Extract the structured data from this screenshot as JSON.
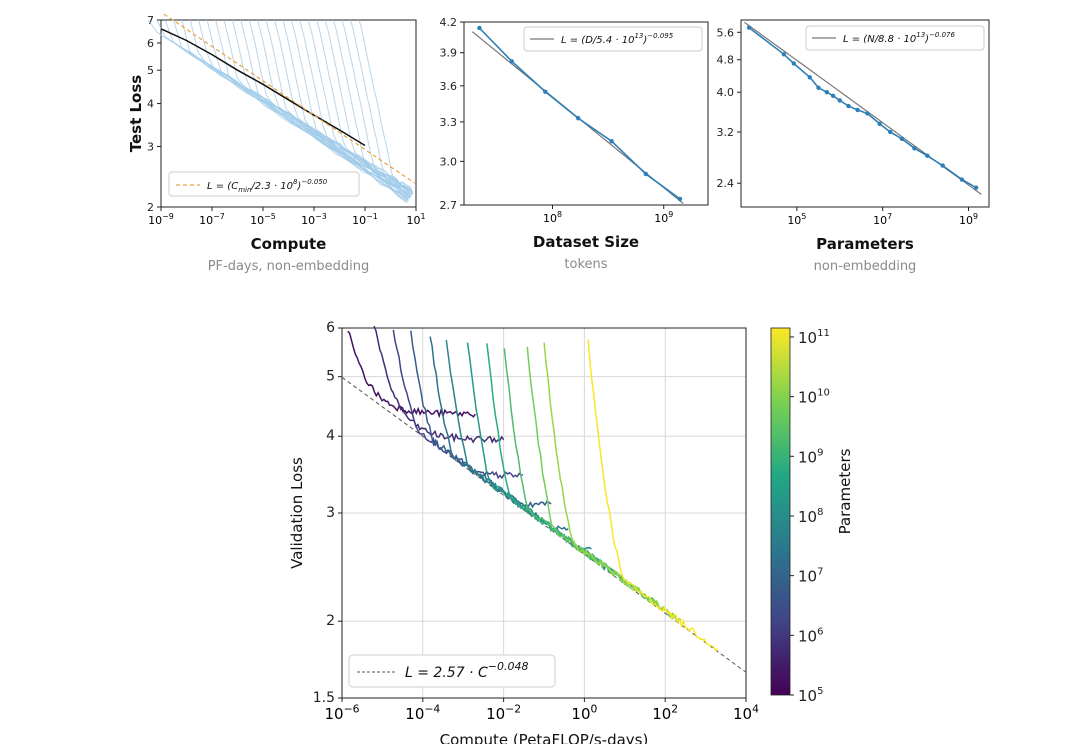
{
  "chart_data": [
    {
      "id": "compute",
      "type": "line",
      "scale": "log-log",
      "xlabel": "Compute",
      "xlabel_sub": "PF-days, non-embedding",
      "ylabel": "Test Loss",
      "xlim": [
        1e-09,
        10
      ],
      "ylim": [
        2,
        7
      ],
      "x_ticks": [
        1e-09,
        1e-07,
        1e-05,
        0.001,
        0.1,
        10
      ],
      "x_tick_labels": [
        {
          "base": "10",
          "exp": "−9"
        },
        {
          "base": "10",
          "exp": "−7"
        },
        {
          "base": "10",
          "exp": "−5"
        },
        {
          "base": "10",
          "exp": "−3"
        },
        {
          "base": "10",
          "exp": "−1"
        },
        {
          "base": "10",
          "exp": "1"
        }
      ],
      "y_ticks": [
        2,
        3,
        4,
        5,
        6,
        7
      ],
      "y_tick_labels": [
        "2",
        "3",
        "4",
        "5",
        "6",
        "7"
      ],
      "legend": {
        "text": "L = (C_min/2.3·10^8)^−0.050",
        "prefix": "L = (C",
        "sub": "min",
        "mid": "/2.3 · 10",
        "sup1": "8",
        "end": ")",
        "sup2": "−0.050",
        "location": "bottom-left"
      },
      "fit": {
        "coef": 230000000.0,
        "alpha": -0.05,
        "color": "#e8a33d",
        "style": "dashed"
      },
      "frontier": {
        "color": "#111111",
        "x": [
          1e-09,
          1e-08,
          1e-07,
          1e-06,
          1e-05,
          0.0001,
          0.001,
          0.01,
          0.1
        ],
        "y": [
          6.6,
          6.1,
          5.55,
          5.0,
          4.55,
          4.1,
          3.7,
          3.35,
          3.02
        ]
      },
      "curve_color": "#9ecae8",
      "curve_count": 26
    },
    {
      "id": "dataset",
      "type": "line",
      "scale": "log-log",
      "xlabel": "Dataset Size",
      "xlabel_sub": "tokens",
      "xlim": [
        16000000.0,
        2500000000.0
      ],
      "ylim": [
        2.7,
        4.2
      ],
      "x_ticks": [
        100000000.0,
        1000000000.0
      ],
      "x_tick_labels": [
        {
          "base": "10",
          "exp": "8"
        },
        {
          "base": "10",
          "exp": "9"
        }
      ],
      "y_ticks": [
        2.7,
        3.0,
        3.3,
        3.6,
        3.9,
        4.2
      ],
      "y_tick_labels": [
        "2.7",
        "3.0",
        "3.3",
        "3.6",
        "3.9",
        "4.2"
      ],
      "legend": {
        "text": "L = (D/5.4·10^13)^−0.095",
        "prefix": "L = (D/5.4 · 10",
        "sup1": "13",
        "end": ")",
        "sup2": "−0.095",
        "location": "top-right"
      },
      "fit": {
        "coef": 54000000000000.0,
        "alpha": -0.095,
        "color": "#777777",
        "style": "solid"
      },
      "series": [
        {
          "name": "observed",
          "color": "#2e7fb8",
          "x": [
            22000000.0,
            43000000.0,
            86000000.0,
            170000000.0,
            340000000.0,
            690000000.0,
            1400000000.0
          ],
          "y": [
            4.14,
            3.82,
            3.55,
            3.33,
            3.15,
            2.91,
            2.74
          ]
        }
      ]
    },
    {
      "id": "parameters",
      "type": "line",
      "scale": "log-log",
      "xlabel": "Parameters",
      "xlabel_sub": "non-embedding",
      "xlim": [
        5000.0,
        3000000000.0
      ],
      "ylim": [
        2.1,
        6.0
      ],
      "x_ticks": [
        100000.0,
        10000000.0,
        1000000000.0
      ],
      "x_tick_labels": [
        {
          "base": "10",
          "exp": "5"
        },
        {
          "base": "10",
          "exp": "7"
        },
        {
          "base": "10",
          "exp": "9"
        }
      ],
      "y_ticks": [
        2.4,
        3.2,
        4.0,
        4.8,
        5.6
      ],
      "y_tick_labels": [
        "2.4",
        "3.2",
        "4.0",
        "4.8",
        "5.6"
      ],
      "legend": {
        "text": "L = (N/8.8·10^13)^−0.076",
        "prefix": "L = (N/8.8 · 10",
        "sup1": "13",
        "end": ")",
        "sup2": "−0.076",
        "location": "top-right"
      },
      "fit": {
        "coef": 88000000000000.0,
        "alpha": -0.076,
        "color": "#777777",
        "style": "solid"
      },
      "series": [
        {
          "name": "observed",
          "color": "#2e7fb8",
          "x": [
            7700.0,
            50000.0,
            85000.0,
            200000.0,
            320000.0,
            500000.0,
            700000.0,
            1000000.0,
            1600000.0,
            2600000.0,
            4400000.0,
            8500000.0,
            15000000.0,
            28000000.0,
            55000000.0,
            110000000.0,
            250000000.0,
            700000000.0,
            1500000000.0
          ],
          "y": [
            5.75,
            4.95,
            4.7,
            4.35,
            4.1,
            4.0,
            3.92,
            3.82,
            3.7,
            3.62,
            3.55,
            3.35,
            3.2,
            3.08,
            2.92,
            2.8,
            2.65,
            2.45,
            2.34
          ]
        }
      ]
    },
    {
      "id": "validation",
      "type": "line",
      "scale": "log-log",
      "xlabel": "Compute (PetaFLOP/s-days)",
      "ylabel": "Validation Loss",
      "xlim": [
        1e-06,
        10000.0
      ],
      "ylim": [
        1.5,
        6
      ],
      "x_ticks": [
        1e-06,
        0.0001,
        0.01,
        1,
        100.0,
        10000.0
      ],
      "x_tick_labels": [
        {
          "base": "10",
          "exp": "−6"
        },
        {
          "base": "10",
          "exp": "−4"
        },
        {
          "base": "10",
          "exp": "−2"
        },
        {
          "base": "10",
          "exp": "0"
        },
        {
          "base": "10",
          "exp": "2"
        },
        {
          "base": "10",
          "exp": "4"
        }
      ],
      "y_ticks": [
        1.5,
        2,
        3,
        4,
        5,
        6
      ],
      "y_tick_labels": [
        "1.5",
        "2",
        "3",
        "4",
        "5",
        "6"
      ],
      "legend": {
        "text": "L = 2.57·C^−0.048",
        "prefix": "L = 2.57 · C",
        "sup": "−0.048",
        "location": "bottom-left"
      },
      "fit": {
        "coef": 2.57,
        "alpha": -0.048,
        "color": "#555555",
        "style": "dashed"
      },
      "colorbar": {
        "label": "Parameters",
        "ticks": [
          {
            "base": "10",
            "exp": "5"
          },
          {
            "base": "10",
            "exp": "6"
          },
          {
            "base": "10",
            "exp": "7"
          },
          {
            "base": "10",
            "exp": "8"
          },
          {
            "base": "10",
            "exp": "9"
          },
          {
            "base": "10",
            "exp": "10"
          },
          {
            "base": "10",
            "exp": "11"
          }
        ],
        "range_log10": [
          5,
          11.15
        ],
        "colormap": [
          "#440154",
          "#414487",
          "#2a788e",
          "#22a884",
          "#7ad151",
          "#fde725"
        ]
      },
      "series": [
        {
          "log10_params": 5.3,
          "x_start": 1e-06,
          "x_end": 0.002,
          "plateau": 4.35
        },
        {
          "log10_params": 5.8,
          "x_start": 5e-06,
          "x_end": 0.01,
          "plateau": 3.95
        },
        {
          "log10_params": 6.3,
          "x_start": 1.5e-05,
          "x_end": 0.03,
          "plateau": 3.45
        },
        {
          "log10_params": 6.8,
          "x_start": 4e-05,
          "x_end": 0.15,
          "plateau": 3.1
        },
        {
          "log10_params": 7.3,
          "x_start": 0.00012,
          "x_end": 0.4,
          "plateau": 2.85
        },
        {
          "log10_params": 7.8,
          "x_start": 0.0003,
          "x_end": 1.5,
          "plateau": 2.6
        },
        {
          "log10_params": 8.3,
          "x_start": 0.001,
          "x_end": 5,
          "plateau": 2.35
        },
        {
          "log10_params": 8.8,
          "x_start": 0.003,
          "x_end": 20,
          "plateau": 2.15
        },
        {
          "log10_params": 9.3,
          "x_start": 0.008,
          "x_end": 80,
          "plateau": 2.0
        },
        {
          "log10_params": 9.8,
          "x_start": 0.03,
          "x_end": 200,
          "plateau": 1.9
        },
        {
          "log10_params": 10.2,
          "x_start": 0.08,
          "x_end": 250,
          "plateau": 1.85
        },
        {
          "log10_params": 11.1,
          "x_start": 1.0,
          "x_end": 2000,
          "plateau": 1.75
        }
      ]
    }
  ]
}
